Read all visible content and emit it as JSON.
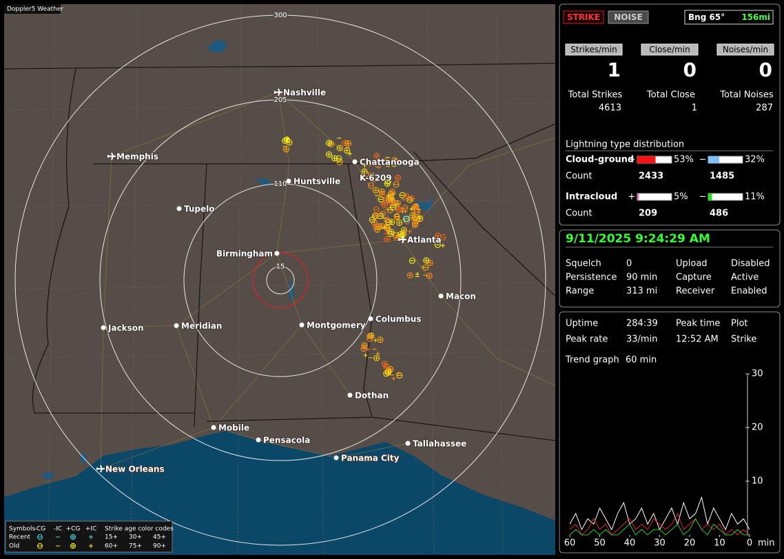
{
  "app_title": "Doppler5 Weather",
  "map": {
    "ring_labels": [
      "300",
      "205",
      "110",
      "15"
    ],
    "sensor_label": "K-6209",
    "cities": [
      "Nashville",
      "Memphis",
      "Chattanooga",
      "Huntsville",
      "Tupelo",
      "Birmingham",
      "Atlanta",
      "Macon",
      "Columbus",
      "Montgomery",
      "Meridian",
      "Jackson",
      "Dothan",
      "Mobile",
      "Pensacola",
      "Tallahassee",
      "Panama City",
      "New Orleans"
    ]
  },
  "legend": {
    "symbols_label": "Symbols",
    "columns": [
      "-CG",
      "-IC",
      "+CG",
      "+IC"
    ],
    "age_title": "Strike age color codes",
    "rows": [
      {
        "label": "Recent",
        "ages": [
          "15+",
          "30+",
          "45+"
        ]
      },
      {
        "label": "Old",
        "ages": [
          "60+",
          "75+",
          "90+"
        ]
      }
    ]
  },
  "controls": {
    "strike": "STRIKE",
    "noise": "NOISE",
    "bearing": "Bng 65°",
    "distance": "156mi"
  },
  "rates": [
    {
      "label": "Strikes/min",
      "value": 1,
      "total_label": "Total Strikes",
      "total": 4613
    },
    {
      "label": "Close/min",
      "value": 0,
      "total_label": "Total Close",
      "total": 1
    },
    {
      "label": "Noises/min",
      "value": 0,
      "total_label": "Total Noises",
      "total": 287
    }
  ],
  "distribution": {
    "title": "Lightning type distribution",
    "count_label": "Count",
    "types": [
      {
        "name": "Cloud-ground",
        "positive": {
          "sign": "+",
          "percent": 53,
          "percent_label": "53%",
          "count": 2433
        },
        "negative": {
          "sign": "−",
          "percent": 32,
          "percent_label": "32%",
          "count": 1485
        }
      },
      {
        "name": "Intracloud",
        "positive": {
          "sign": "+",
          "percent": 5,
          "percent_label": "5%",
          "count": 209
        },
        "negative": {
          "sign": "−",
          "percent": 11,
          "percent_label": "11%",
          "count": 486
        }
      }
    ]
  },
  "status": {
    "datetime": "9/11/2025 9:24:29 AM",
    "rows": [
      [
        "Squelch",
        "0",
        "Upload",
        "Disabled"
      ],
      [
        "Persistence",
        "90 min",
        "Capture",
        "Active"
      ],
      [
        "Range",
        "313 mi",
        "Receiver",
        "Enabled"
      ]
    ]
  },
  "stats": {
    "rows": [
      [
        "Uptime",
        "284:39",
        "Peak time",
        "Plot"
      ],
      [
        "Peak rate",
        "33/min",
        "12:52 AM",
        "Strike"
      ]
    ],
    "trend_label": "Trend graph",
    "trend_window": "60 min"
  },
  "chart_data": {
    "type": "line",
    "x": [
      60,
      58,
      56,
      54,
      52,
      50,
      48,
      46,
      44,
      42,
      40,
      38,
      36,
      34,
      32,
      30,
      28,
      26,
      24,
      22,
      20,
      18,
      16,
      14,
      12,
      10,
      8,
      6,
      4,
      2,
      0
    ],
    "xlim": [
      60,
      0
    ],
    "xticks": [
      60,
      50,
      40,
      30,
      20,
      10,
      0
    ],
    "x_label": "min",
    "ylim": [
      0,
      30
    ],
    "yticks": [
      10,
      20,
      30
    ],
    "series": [
      {
        "name": "Strikes",
        "color": "#ffffff",
        "values": [
          2,
          4,
          1,
          3,
          2,
          5,
          3,
          1,
          4,
          6,
          2,
          3,
          5,
          2,
          4,
          1,
          3,
          5,
          2,
          6,
          3,
          4,
          7,
          2,
          5,
          3,
          1,
          4,
          2,
          3,
          1
        ]
      },
      {
        "name": "Close",
        "color": "#e02020",
        "values": [
          1,
          2,
          0,
          1,
          3,
          1,
          2,
          0,
          1,
          2,
          3,
          1,
          2,
          1,
          3,
          2,
          1,
          2,
          4,
          1,
          2,
          3,
          1,
          2,
          1,
          2,
          0,
          1,
          0,
          1,
          0
        ]
      },
      {
        "name": "Noises",
        "color": "#20d020",
        "values": [
          0,
          1,
          0,
          0,
          1,
          0,
          1,
          0,
          0,
          1,
          2,
          0,
          1,
          0,
          1,
          1,
          0,
          1,
          2,
          0,
          1,
          3,
          1,
          0,
          2,
          1,
          0,
          0,
          1,
          0,
          0
        ]
      }
    ]
  }
}
